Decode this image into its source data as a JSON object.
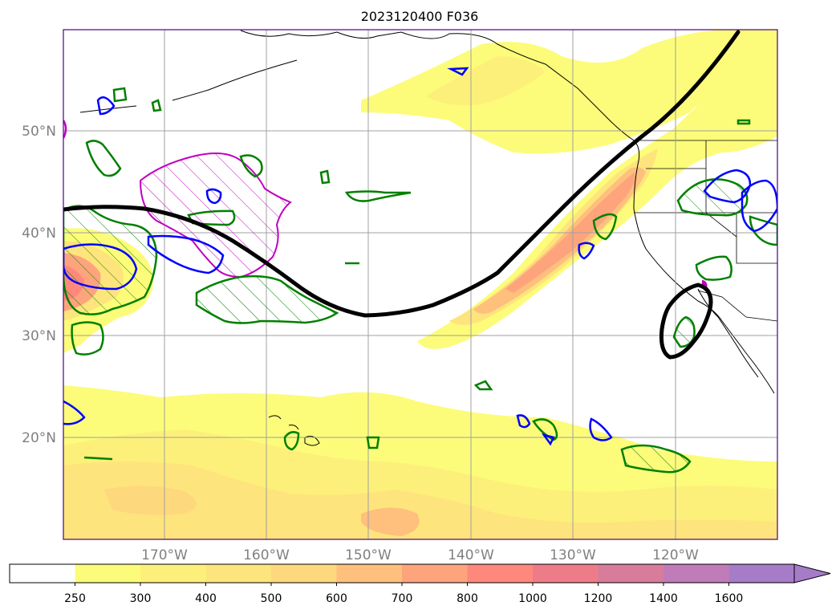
{
  "title": "2023120400 F036",
  "latitude_labels": [
    "50°N",
    "40°N",
    "30°N",
    "20°N"
  ],
  "longitude_labels": [
    "170°W",
    "160°W",
    "150°W",
    "140°W",
    "130°W",
    "120°W"
  ],
  "colorbar": {
    "labels": [
      "250",
      "300",
      "400",
      "500",
      "600",
      "700",
      "800",
      "1000",
      "1200",
      "1400",
      "1600"
    ],
    "colors": [
      "#ffffff",
      "#fcfc7a",
      "#fdf07a",
      "#fee47c",
      "#fed87c",
      "#fec07c",
      "#fea47c",
      "#fe887c",
      "#ee7c88",
      "#d87c9c",
      "#c07cb8",
      "#a67cc8"
    ],
    "extend": "max"
  },
  "overlays": {
    "jet_axis_color": "#000000",
    "green_contour_color": "#008000",
    "blue_contour_color": "#0000ff",
    "magenta_contour_color": "#c000c0"
  }
}
